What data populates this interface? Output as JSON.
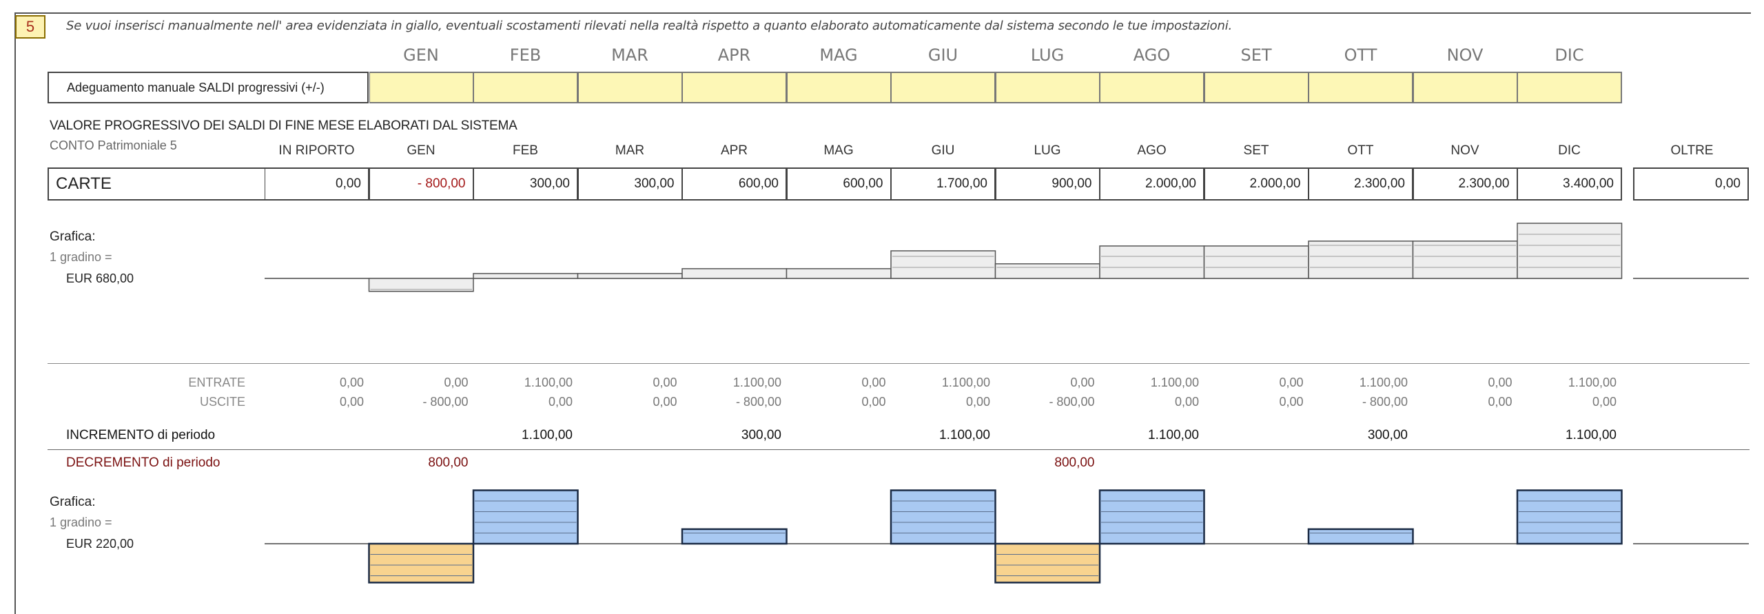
{
  "step_number": "5",
  "instruction": "Se vuoi inserisci manualmente nell' area evidenziata in giallo, eventuali scostamenti rilevati nella realtà rispetto a quanto elaborato automaticamente dal sistema secondo le tue impostazioni.",
  "months": [
    "GEN",
    "FEB",
    "MAR",
    "APR",
    "MAG",
    "GIU",
    "LUG",
    "AGO",
    "SET",
    "OTT",
    "NOV",
    "DIC"
  ],
  "adjustment": {
    "label": "Adeguamento manuale SALDI progressivi (+/-)",
    "values": [
      "",
      "",
      "",
      "",
      "",
      "",
      "",
      "",
      "",
      "",
      "",
      ""
    ]
  },
  "balances": {
    "section_title": "VALORE PROGRESSIVO DEI SALDI DI FINE MESE ELABORATI DAL SISTEMA",
    "account": "CONTO Patrimoniale 5",
    "headers": [
      "IN RIPORTO",
      "GEN",
      "FEB",
      "MAR",
      "APR",
      "MAG",
      "GIU",
      "LUG",
      "AGO",
      "SET",
      "OTT",
      "NOV",
      "DIC"
    ],
    "oltre_header": "OLTRE",
    "row_label": "CARTE",
    "values": [
      "0,00",
      "- 800,00",
      "300,00",
      "300,00",
      "600,00",
      "600,00",
      "1.700,00",
      "900,00",
      "2.000,00",
      "2.000,00",
      "2.300,00",
      "2.300,00",
      "3.400,00"
    ],
    "oltre_value": "0,00"
  },
  "balance_chart": {
    "title": "Grafica:",
    "step_text": "1 gradino =",
    "eur_text": "EUR 680,00",
    "step_value": 680,
    "values": [
      -800,
      300,
      300,
      600,
      600,
      1700,
      900,
      2000,
      2000,
      2300,
      2300,
      3400
    ],
    "fill_color": "#eeeeee",
    "stroke_color": "#555555"
  },
  "flows": {
    "entrate_label": "ENTRATE",
    "uscite_label": "USCITE",
    "entrate": [
      "0,00",
      "0,00",
      "1.100,00",
      "0,00",
      "1.100,00",
      "0,00",
      "1.100,00",
      "0,00",
      "1.100,00",
      "0,00",
      "1.100,00",
      "0,00",
      "1.100,00"
    ],
    "uscite": [
      "0,00",
      "- 800,00",
      "0,00",
      "0,00",
      "- 800,00",
      "0,00",
      "0,00",
      "- 800,00",
      "0,00",
      "0,00",
      "- 800,00",
      "0,00",
      "0,00"
    ]
  },
  "increment": {
    "label": "INCREMENTO di periodo",
    "values": [
      "",
      "",
      "1.100,00",
      "",
      "300,00",
      "",
      "1.100,00",
      "",
      "1.100,00",
      "",
      "300,00",
      "",
      "1.100,00"
    ]
  },
  "decrement": {
    "label": "DECREMENTO di periodo",
    "values": [
      "",
      "800,00",
      "",
      "",
      "",
      "",
      "",
      "800,00",
      "",
      "",
      "",
      "",
      ""
    ]
  },
  "period_chart": {
    "title": "Grafica:",
    "step_text": "1 gradino =",
    "eur_text": "EUR 220,00",
    "step_value": 220,
    "values": [
      -800,
      1100,
      0,
      300,
      0,
      1100,
      -800,
      1100,
      0,
      300,
      0,
      1100
    ],
    "positive_color": "#a9c9f2",
    "negative_color": "#f8d38f",
    "stroke_color": "#1a2a44"
  }
}
